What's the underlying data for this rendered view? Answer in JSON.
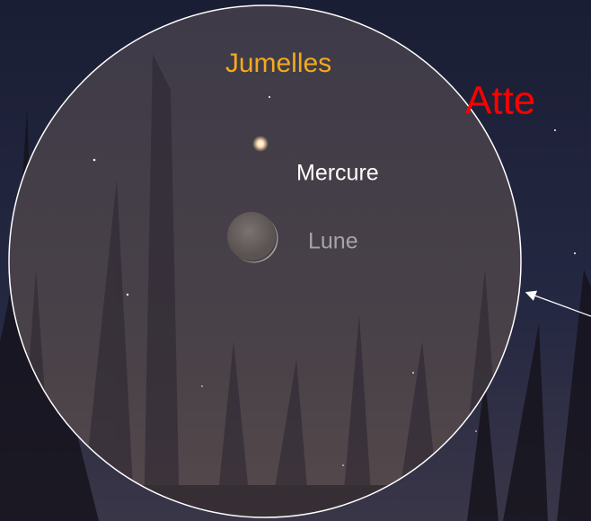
{
  "view": {
    "field_label": "Jumelles",
    "warning": "Atte",
    "objects": [
      "Mercure",
      "Lune"
    ]
  }
}
